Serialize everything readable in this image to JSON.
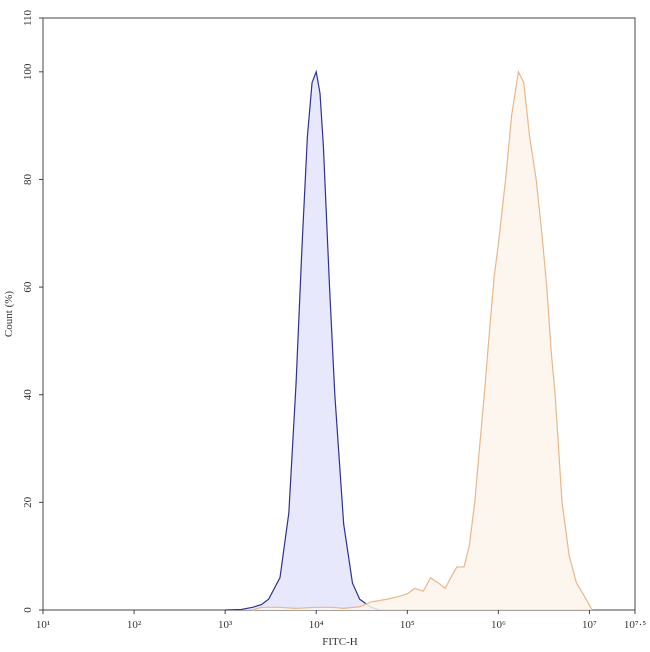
{
  "chart_data": {
    "type": "histogram-area",
    "x_label": "FITC-H",
    "y_label": "Count (%)",
    "log_x": true,
    "xlim": [
      10,
      31622776.6
    ],
    "xticks": [
      {
        "value": 10,
        "label": "10¹"
      },
      {
        "value": 100,
        "label": "10²"
      },
      {
        "value": 1000,
        "label": "10³"
      },
      {
        "value": 10000,
        "label": "10⁴"
      },
      {
        "value": 100000,
        "label": "10⁵"
      },
      {
        "value": 1000000,
        "label": "10⁶"
      },
      {
        "value": 10000000,
        "label": "10⁷"
      },
      {
        "value": 31622776.6,
        "label": "10⁷·⁵"
      }
    ],
    "ylim": [
      0,
      110
    ],
    "yticks": [
      0,
      20,
      40,
      60,
      80,
      100,
      110
    ],
    "series": [
      {
        "color": "#2e318f",
        "fill": "#e4e4fb",
        "x": [
          1000,
          1500,
          2000,
          2500,
          3000,
          4000,
          5000,
          6000,
          7000,
          8000,
          9000,
          10000,
          11000,
          12000,
          14000,
          16000,
          20000,
          25000,
          30000,
          40000,
          50000
        ],
        "values": [
          0,
          0.1,
          0.5,
          1,
          2,
          6,
          18,
          42,
          68,
          88,
          98,
          100,
          96,
          86,
          60,
          40,
          16,
          5,
          2,
          0.5,
          0
        ]
      },
      {
        "color": "#e7b88a",
        "fill": "#fdf4ec",
        "x": [
          2000,
          2500,
          4000,
          6000,
          10000,
          15000,
          20000,
          30000,
          40000,
          60000,
          80000,
          100000,
          120000,
          150000,
          180000,
          220000,
          260000,
          300000,
          350000,
          420000,
          480000,
          550000,
          620000,
          700000,
          800000,
          900000,
          1000000,
          1200000,
          1400000,
          1660000,
          1900000,
          2200000,
          2600000,
          3000000,
          3400000,
          3800000,
          4200000,
          5000000,
          6000000,
          7200000,
          8500000,
          10700000
        ],
        "values": [
          0,
          0.5,
          0.5,
          0.3,
          0.5,
          0.5,
          0.3,
          0.6,
          1.5,
          2,
          2.5,
          3,
          4,
          3.5,
          6,
          5,
          4,
          6,
          8,
          8,
          12,
          20,
          30,
          40,
          52,
          62,
          68,
          80,
          92,
          100,
          98,
          88,
          80,
          70,
          60,
          48,
          40,
          20,
          10,
          5,
          3,
          0
        ]
      }
    ]
  }
}
